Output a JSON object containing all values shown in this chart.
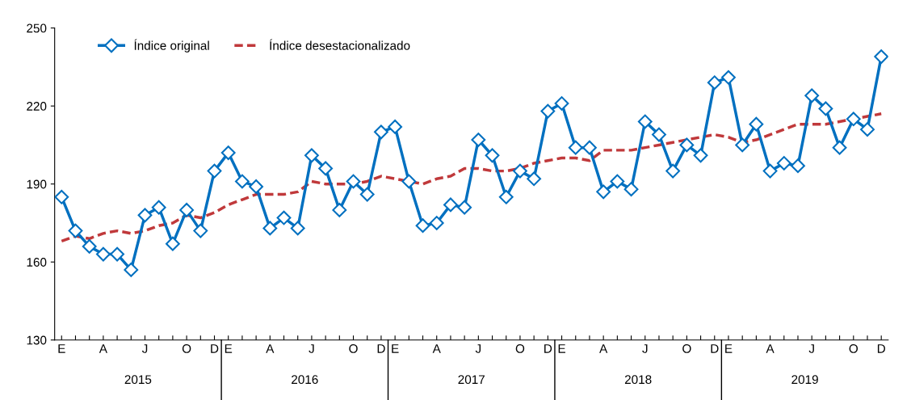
{
  "chart_data": {
    "type": "line",
    "categories": [
      "E",
      null,
      null,
      "A",
      null,
      null,
      "J",
      null,
      null,
      "O",
      null,
      "D",
      "E",
      null,
      null,
      "A",
      null,
      null,
      "J",
      null,
      null,
      "O",
      null,
      "D",
      "E",
      null,
      null,
      "A",
      null,
      null,
      "J",
      null,
      null,
      "O",
      null,
      "D",
      "E",
      null,
      null,
      "A",
      null,
      null,
      "J",
      null,
      null,
      "O",
      null,
      "D",
      "E",
      null,
      null,
      "A",
      null,
      null,
      "J",
      null,
      null,
      "O",
      null,
      "D"
    ],
    "series": [
      {
        "name": "Índice original",
        "color": "#0070c0",
        "marker": "diamond",
        "line_style": "solid",
        "values": [
          185,
          172,
          166,
          163,
          163,
          157,
          178,
          181,
          167,
          180,
          172,
          195,
          202,
          191,
          189,
          173,
          177,
          173,
          201,
          196,
          180,
          191,
          186,
          210,
          212,
          191,
          174,
          175,
          182,
          181,
          207,
          201,
          185,
          195,
          192,
          218,
          221,
          204,
          204,
          187,
          191,
          188,
          214,
          209,
          195,
          205,
          201,
          229,
          231,
          205,
          213,
          195,
          198,
          197,
          224,
          219,
          204,
          215,
          211,
          239
        ]
      },
      {
        "name": "Índice desestacionalizado",
        "color": "#c0393b",
        "marker": "none",
        "line_style": "dashed",
        "values": [
          168,
          170,
          169,
          171,
          172,
          171,
          172,
          174,
          175,
          178,
          177,
          179,
          182,
          184,
          186,
          186,
          186,
          187,
          191,
          190,
          190,
          190,
          191,
          193,
          192,
          191,
          190,
          192,
          193,
          196,
          196,
          195,
          195,
          196,
          198,
          199,
          200,
          200,
          199,
          203,
          203,
          203,
          204,
          205,
          206,
          207,
          208,
          209,
          208,
          206,
          207,
          209,
          211,
          213,
          213,
          213,
          214,
          215,
          216,
          217
        ]
      }
    ],
    "annotations": [
      "2015",
      "2016",
      "2017",
      "2018",
      "2019"
    ],
    "ylim": [
      130,
      250
    ],
    "yticks": [
      130,
      160,
      190,
      220,
      250
    ],
    "legend": "top left",
    "grid": false
  }
}
